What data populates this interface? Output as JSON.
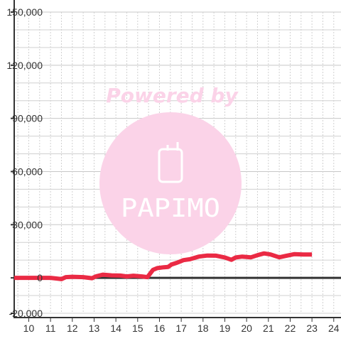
{
  "chart_data": {
    "type": "line",
    "title": "",
    "xlabel": "",
    "ylabel": "",
    "xlim": [
      9.333,
      24.333
    ],
    "ylim": [
      -20000,
      150000
    ],
    "grid": true,
    "x_ticks": [
      10,
      11,
      12,
      13,
      14,
      15,
      16,
      17,
      18,
      19,
      20,
      21,
      22,
      23,
      24
    ],
    "x_tick_labels": [
      "10",
      "11",
      "12",
      "13",
      "14",
      "15",
      "16",
      "17",
      "18",
      "19",
      "20",
      "21",
      "22",
      "23",
      "24"
    ],
    "y_ticks": [
      -20000,
      0,
      30000,
      60000,
      90000,
      120000,
      150000
    ],
    "y_tick_labels": [
      "-20,000",
      "0",
      "30,000",
      "60,000",
      "90,000",
      "120,000",
      "150,000"
    ],
    "series": [
      {
        "color": "#ea2a44",
        "points": [
          [
            9.33,
            0
          ],
          [
            10.0,
            0
          ],
          [
            10.5,
            0
          ],
          [
            11.0,
            0
          ],
          [
            11.3,
            -400
          ],
          [
            11.5,
            -700
          ],
          [
            11.7,
            400
          ],
          [
            12.0,
            600
          ],
          [
            12.5,
            400
          ],
          [
            12.9,
            -200
          ],
          [
            13.1,
            900
          ],
          [
            13.4,
            1800
          ],
          [
            13.8,
            1400
          ],
          [
            14.2,
            1300
          ],
          [
            14.5,
            800
          ],
          [
            14.8,
            1200
          ],
          [
            15.2,
            800
          ],
          [
            15.45,
            400
          ],
          [
            15.7,
            4500
          ],
          [
            15.9,
            5500
          ],
          [
            16.2,
            6000
          ],
          [
            16.4,
            6200
          ],
          [
            16.55,
            7500
          ],
          [
            16.8,
            8500
          ],
          [
            17.1,
            10000
          ],
          [
            17.4,
            10500
          ],
          [
            17.8,
            12000
          ],
          [
            18.2,
            12600
          ],
          [
            18.6,
            12500
          ],
          [
            19.0,
            11500
          ],
          [
            19.3,
            10200
          ],
          [
            19.5,
            11500
          ],
          [
            19.8,
            12000
          ],
          [
            20.2,
            11600
          ],
          [
            20.5,
            12800
          ],
          [
            20.8,
            13800
          ],
          [
            21.1,
            13200
          ],
          [
            21.5,
            11600
          ],
          [
            21.8,
            12400
          ],
          [
            22.2,
            13400
          ],
          [
            22.6,
            13200
          ],
          [
            23.0,
            13200
          ]
        ]
      }
    ],
    "annotations": [
      "Powered by",
      "PAPIMO"
    ]
  },
  "colors": {
    "axis": "#333333",
    "grid_major": "#c8c8c8",
    "grid_minor": "#d0d0d0",
    "series": "#ea2a44",
    "watermark": "#fbd3e8"
  }
}
